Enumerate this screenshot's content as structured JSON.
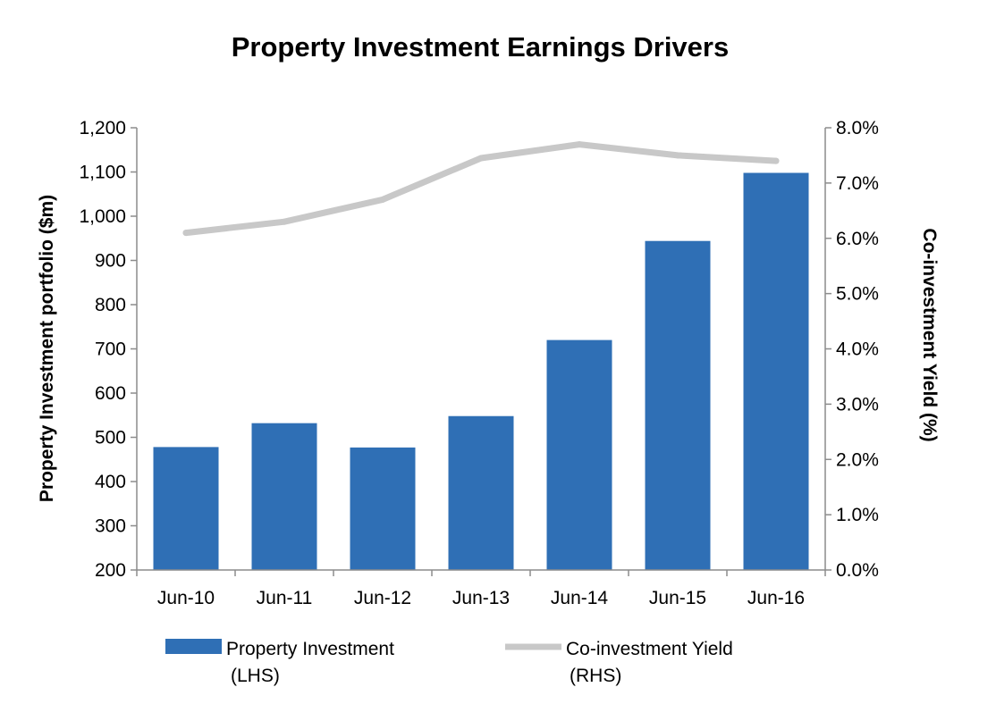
{
  "chart_data": {
    "type": "bar",
    "title": "Property Investment Earnings Drivers",
    "categories": [
      "Jun-10",
      "Jun-11",
      "Jun-12",
      "Jun-13",
      "Jun-14",
      "Jun-15",
      "Jun-16"
    ],
    "series": [
      {
        "name": "Property Investment (LHS)",
        "legend_lines": [
          "Property Investment",
          "(LHS)"
        ],
        "type": "bar",
        "axis": "left",
        "color": "#2f6fb5",
        "values": [
          478,
          532,
          477,
          548,
          720,
          944,
          1098
        ]
      },
      {
        "name": "Co-investment Yield (RHS)",
        "legend_lines": [
          "Co-investment Yield",
          "(RHS)"
        ],
        "type": "line",
        "axis": "right",
        "color": "#c8c8c8",
        "values": [
          6.1,
          6.3,
          6.7,
          7.45,
          7.7,
          7.5,
          7.4
        ]
      }
    ],
    "y_left": {
      "label": "Property Investment portfolio ($m)",
      "ylim": [
        200,
        1200
      ],
      "ticks": [
        200,
        300,
        400,
        500,
        600,
        700,
        800,
        900,
        1000,
        1100,
        1200
      ],
      "tick_labels": [
        "200",
        "300",
        "400",
        "500",
        "600",
        "700",
        "800",
        "900",
        "1,000",
        "1,100",
        "1,200"
      ]
    },
    "y_right": {
      "label": "Co-investment Yield (%)",
      "ylim": [
        0,
        8
      ],
      "ticks": [
        0,
        1,
        2,
        3,
        4,
        5,
        6,
        7,
        8
      ],
      "tick_labels": [
        "0.0%",
        "1.0%",
        "2.0%",
        "3.0%",
        "4.0%",
        "5.0%",
        "6.0%",
        "7.0%",
        "8.0%"
      ]
    },
    "grid": false,
    "legend_position": "bottom"
  }
}
